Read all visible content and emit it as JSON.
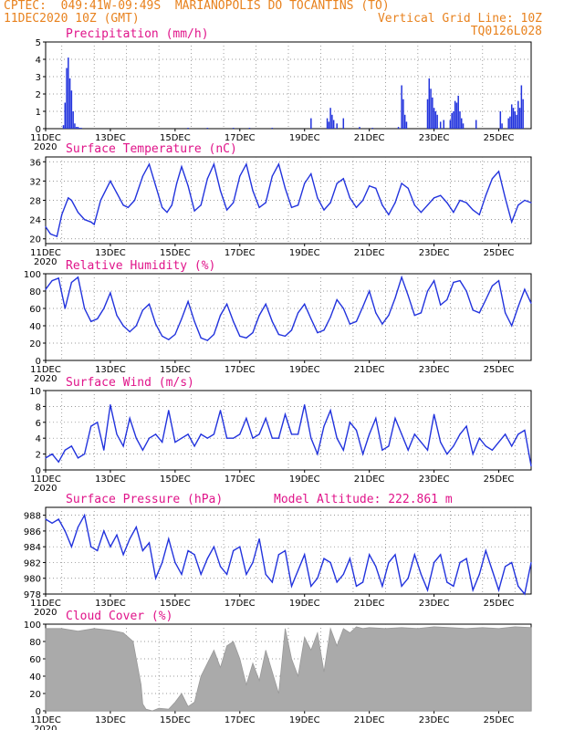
{
  "header": {
    "line1": "CPTEC:  049:41W-09:49S  MARIANOPOLIS DO TOCANTINS (TO)",
    "line2_left": "11DEC2020 10Z (GMT)",
    "line2_right": "Vertical Grid Line: 10Z",
    "line3_right": "TQ0126L028"
  },
  "colors": {
    "header": "#e8821e",
    "title": "#e0148a",
    "line": "#2233dd",
    "cloud": "#aaaaaa"
  },
  "x_ticks": [
    "11DEC",
    "13DEC",
    "15DEC",
    "17DEC",
    "19DEC",
    "21DEC",
    "23DEC",
    "25DEC"
  ],
  "x_year": "2020",
  "chart_data": [
    {
      "type": "bar",
      "title": "Precipitation (mm/h)",
      "ylim": [
        0,
        5
      ],
      "yticks": [
        "0",
        "1",
        "2",
        "3",
        "4",
        "5"
      ],
      "x_range_days": [
        0,
        15
      ],
      "x": [
        0.55,
        0.6,
        0.65,
        0.7,
        0.75,
        0.8,
        0.85,
        0.9,
        0.95,
        1.0,
        1.05,
        1.1,
        4.4,
        5.0,
        5.8,
        6.3,
        7.0,
        8.2,
        8.7,
        8.75,
        8.8,
        8.85,
        8.9,
        9.0,
        9.2,
        9.7,
        10.1,
        10.9,
        11.0,
        11.05,
        11.1,
        11.15,
        11.8,
        11.85,
        11.9,
        11.95,
        12.0,
        12.05,
        12.1,
        12.2,
        12.3,
        12.5,
        12.55,
        12.6,
        12.65,
        12.7,
        12.75,
        12.8,
        12.85,
        12.9,
        13.3,
        14.05,
        14.1,
        14.3,
        14.35,
        14.4,
        14.45,
        14.5,
        14.55,
        14.6,
        14.65,
        14.7,
        14.75
      ],
      "values": [
        0.2,
        1.5,
        3.5,
        4.1,
        2.9,
        2.2,
        1.0,
        0.3,
        0.1,
        0.1,
        0.05,
        0.05,
        0.05,
        0.05,
        0.05,
        0.05,
        0.05,
        0.6,
        0.6,
        0.4,
        1.2,
        0.8,
        0.5,
        0.3,
        0.6,
        0.1,
        0.05,
        0.1,
        2.5,
        1.7,
        0.8,
        0.4,
        1.7,
        2.9,
        2.3,
        1.8,
        1.2,
        1.0,
        0.8,
        0.4,
        0.5,
        0.5,
        0.9,
        1.0,
        1.6,
        1.5,
        1.9,
        1.0,
        0.6,
        0.3,
        0.5,
        1.0,
        0.3,
        0.6,
        0.7,
        1.4,
        1.2,
        1.0,
        0.8,
        1.6,
        1.2,
        2.5,
        1.7
      ]
    },
    {
      "type": "line",
      "title": "Surface Temperature (nC)",
      "ylim": [
        19,
        37
      ],
      "yticks": [
        "20",
        "24",
        "28",
        "32",
        "36"
      ],
      "x_range_days": [
        0,
        15
      ],
      "x": [
        0,
        0.15,
        0.35,
        0.5,
        0.7,
        0.8,
        1.0,
        1.2,
        1.4,
        1.5,
        1.7,
        2.0,
        2.2,
        2.4,
        2.55,
        2.75,
        3.0,
        3.2,
        3.4,
        3.6,
        3.75,
        3.9,
        4.05,
        4.2,
        4.4,
        4.6,
        4.8,
        5.0,
        5.2,
        5.4,
        5.6,
        5.8,
        6.0,
        6.2,
        6.4,
        6.6,
        6.8,
        7.0,
        7.2,
        7.4,
        7.6,
        7.8,
        8.0,
        8.2,
        8.4,
        8.6,
        8.8,
        9.0,
        9.2,
        9.4,
        9.6,
        9.8,
        10.0,
        10.2,
        10.4,
        10.6,
        10.8,
        11.0,
        11.2,
        11.4,
        11.6,
        11.8,
        12.0,
        12.2,
        12.4,
        12.6,
        12.8,
        13.0,
        13.2,
        13.4,
        13.6,
        13.8,
        14.0,
        14.2,
        14.4,
        14.6,
        14.8,
        15.0
      ],
      "values": [
        22.5,
        21.0,
        20.5,
        25.0,
        28.5,
        28.0,
        25.5,
        24.0,
        23.5,
        23.0,
        28.0,
        32.0,
        29.5,
        27.0,
        26.5,
        28.0,
        33.0,
        35.5,
        31.0,
        26.5,
        25.5,
        27.0,
        31.5,
        35.0,
        31.0,
        25.8,
        27.0,
        32.5,
        35.5,
        30.0,
        26.0,
        27.5,
        33.0,
        35.5,
        30.0,
        26.5,
        27.5,
        33.0,
        35.5,
        30.5,
        26.5,
        27.0,
        31.5,
        33.5,
        28.5,
        26.0,
        27.5,
        31.5,
        32.5,
        28.5,
        26.5,
        28.0,
        31.0,
        30.5,
        27.0,
        25.0,
        27.5,
        31.5,
        30.5,
        27.0,
        25.5,
        27.0,
        28.5,
        29.0,
        27.5,
        25.5,
        28.0,
        27.5,
        26.0,
        25.0,
        29.0,
        32.5,
        34.0,
        28.5,
        23.5,
        27.0,
        28.0,
        27.5
      ]
    },
    {
      "type": "line",
      "title": "Relative Humidity (%)",
      "ylim": [
        0,
        100
      ],
      "yticks": [
        "0",
        "20",
        "40",
        "60",
        "80",
        "100"
      ],
      "x_range_days": [
        0,
        15
      ],
      "x": [
        0,
        0.2,
        0.4,
        0.6,
        0.8,
        1.0,
        1.2,
        1.4,
        1.6,
        1.8,
        2.0,
        2.2,
        2.4,
        2.6,
        2.8,
        3.0,
        3.2,
        3.4,
        3.6,
        3.8,
        4.0,
        4.2,
        4.4,
        4.6,
        4.8,
        5.0,
        5.2,
        5.4,
        5.6,
        5.8,
        6.0,
        6.2,
        6.4,
        6.6,
        6.8,
        7.0,
        7.2,
        7.4,
        7.6,
        7.8,
        8.0,
        8.2,
        8.4,
        8.6,
        8.8,
        9.0,
        9.2,
        9.4,
        9.6,
        9.8,
        10.0,
        10.2,
        10.4,
        10.6,
        10.8,
        11.0,
        11.2,
        11.4,
        11.6,
        11.8,
        12.0,
        12.2,
        12.4,
        12.6,
        12.8,
        13.0,
        13.2,
        13.4,
        13.6,
        13.8,
        14.0,
        14.2,
        14.4,
        14.6,
        14.8,
        15.0
      ],
      "values": [
        82,
        92,
        95,
        60,
        90,
        96,
        60,
        45,
        48,
        60,
        78,
        52,
        40,
        33,
        40,
        58,
        65,
        42,
        28,
        24,
        30,
        48,
        68,
        45,
        26,
        23,
        30,
        52,
        65,
        45,
        28,
        26,
        32,
        52,
        65,
        45,
        30,
        28,
        35,
        55,
        65,
        48,
        32,
        35,
        50,
        70,
        60,
        42,
        45,
        62,
        80,
        55,
        42,
        52,
        72,
        96,
        75,
        52,
        55,
        80,
        92,
        64,
        70,
        90,
        92,
        80,
        58,
        55,
        70,
        86,
        92,
        55,
        40,
        62,
        82,
        66
      ]
    },
    {
      "type": "line",
      "title": "Surface Wind (m/s)",
      "ylim": [
        0,
        10
      ],
      "yticks": [
        "0",
        "2",
        "4",
        "6",
        "8",
        "10"
      ],
      "x_range_days": [
        0,
        15
      ],
      "x": [
        0,
        0.2,
        0.4,
        0.6,
        0.8,
        1.0,
        1.2,
        1.4,
        1.6,
        1.8,
        2.0,
        2.2,
        2.4,
        2.6,
        2.8,
        3.0,
        3.2,
        3.4,
        3.6,
        3.8,
        4.0,
        4.2,
        4.4,
        4.6,
        4.8,
        5.0,
        5.2,
        5.4,
        5.6,
        5.8,
        6.0,
        6.2,
        6.4,
        6.6,
        6.8,
        7.0,
        7.2,
        7.4,
        7.6,
        7.8,
        8.0,
        8.2,
        8.4,
        8.6,
        8.8,
        9.0,
        9.2,
        9.4,
        9.6,
        9.8,
        10.0,
        10.2,
        10.4,
        10.6,
        10.8,
        11.0,
        11.2,
        11.4,
        11.6,
        11.8,
        12.0,
        12.2,
        12.4,
        12.6,
        12.8,
        13.0,
        13.2,
        13.4,
        13.6,
        13.8,
        14.0,
        14.2,
        14.4,
        14.6,
        14.8,
        15.0
      ],
      "values": [
        1.5,
        2.0,
        1.0,
        2.5,
        3.0,
        1.5,
        2.0,
        5.5,
        6.0,
        2.5,
        8.2,
        4.5,
        3.0,
        6.5,
        4.0,
        2.5,
        4.0,
        4.5,
        3.5,
        7.5,
        3.5,
        4.0,
        4.5,
        3.0,
        4.5,
        4.0,
        4.5,
        7.5,
        4.0,
        4.0,
        4.5,
        6.5,
        4.0,
        4.5,
        6.5,
        4.0,
        4.0,
        7.0,
        4.5,
        4.5,
        8.2,
        4.0,
        2.0,
        5.5,
        7.5,
        4.0,
        2.5,
        6.0,
        5.0,
        2.0,
        4.5,
        6.5,
        2.5,
        3.0,
        6.5,
        4.5,
        2.5,
        4.5,
        3.5,
        2.5,
        7.0,
        3.5,
        2.0,
        3.0,
        4.5,
        5.5,
        2.0,
        4.0,
        3.0,
        2.5,
        3.5,
        4.5,
        3.0,
        4.5,
        5.0,
        0.5
      ]
    },
    {
      "type": "line",
      "title": "Surface Pressure (hPa)",
      "subtitle": "Model Altitude: 222.861 m",
      "ylim": [
        978,
        989
      ],
      "yticks": [
        "978",
        "980",
        "982",
        "984",
        "986",
        "988"
      ],
      "x_range_days": [
        0,
        15
      ],
      "x": [
        0,
        0.2,
        0.4,
        0.6,
        0.8,
        1.0,
        1.2,
        1.4,
        1.6,
        1.8,
        2.0,
        2.2,
        2.4,
        2.6,
        2.8,
        3.0,
        3.2,
        3.4,
        3.6,
        3.8,
        4.0,
        4.2,
        4.4,
        4.6,
        4.8,
        5.0,
        5.2,
        5.4,
        5.6,
        5.8,
        6.0,
        6.2,
        6.4,
        6.6,
        6.8,
        7.0,
        7.2,
        7.4,
        7.6,
        7.8,
        8.0,
        8.2,
        8.4,
        8.6,
        8.8,
        9.0,
        9.2,
        9.4,
        9.6,
        9.8,
        10.0,
        10.2,
        10.4,
        10.6,
        10.8,
        11.0,
        11.2,
        11.4,
        11.6,
        11.8,
        12.0,
        12.2,
        12.4,
        12.6,
        12.8,
        13.0,
        13.2,
        13.4,
        13.6,
        13.8,
        14.0,
        14.2,
        14.4,
        14.6,
        14.8,
        15.0
      ],
      "values": [
        987.5,
        987.0,
        987.5,
        986.0,
        984.0,
        986.5,
        988.0,
        984.0,
        983.5,
        986.0,
        984.0,
        985.5,
        983.0,
        985.0,
        986.5,
        983.5,
        984.5,
        980.0,
        982.0,
        985.0,
        982.0,
        980.5,
        983.5,
        983.0,
        980.5,
        982.5,
        984.0,
        981.5,
        980.5,
        983.5,
        984.0,
        980.5,
        982.0,
        985.0,
        980.5,
        979.5,
        983.0,
        983.5,
        979.0,
        981.0,
        983.0,
        979.0,
        980.0,
        982.5,
        982.0,
        979.5,
        980.5,
        982.5,
        979.0,
        979.5,
        983.0,
        981.5,
        979.0,
        982.0,
        983.0,
        979.0,
        980.0,
        983.0,
        980.5,
        978.5,
        982.0,
        983.0,
        979.5,
        979.0,
        982.0,
        982.5,
        978.5,
        980.5,
        983.5,
        981.0,
        978.5,
        981.5,
        982.0,
        979.0,
        978.0,
        982.0
      ]
    },
    {
      "type": "area",
      "title": "Cloud Cover (%)",
      "ylim": [
        0,
        100
      ],
      "yticks": [
        "0",
        "20",
        "40",
        "60",
        "80",
        "100"
      ],
      "x_range_days": [
        0,
        15
      ],
      "x": [
        0,
        0.5,
        1.0,
        1.5,
        2.0,
        2.4,
        2.7,
        2.95,
        3.0,
        3.1,
        3.3,
        3.5,
        3.8,
        4.0,
        4.2,
        4.4,
        4.6,
        4.8,
        5.0,
        5.2,
        5.4,
        5.6,
        5.8,
        6.0,
        6.2,
        6.4,
        6.6,
        6.8,
        7.0,
        7.2,
        7.4,
        7.6,
        7.8,
        8.0,
        8.2,
        8.4,
        8.6,
        8.8,
        9.0,
        9.2,
        9.4,
        9.6,
        9.8,
        10.0,
        10.5,
        11.0,
        11.5,
        12.0,
        12.5,
        13.0,
        13.5,
        14.0,
        14.5,
        15.0
      ],
      "values": [
        95,
        95,
        92,
        95,
        93,
        90,
        80,
        30,
        8,
        2,
        0,
        3,
        2,
        10,
        20,
        5,
        10,
        40,
        55,
        70,
        50,
        75,
        80,
        60,
        30,
        55,
        35,
        70,
        45,
        20,
        95,
        60,
        40,
        85,
        70,
        90,
        45,
        95,
        75,
        95,
        90,
        97,
        95,
        96,
        95,
        96,
        95,
        97,
        96,
        95,
        96,
        95,
        97,
        96
      ]
    }
  ]
}
